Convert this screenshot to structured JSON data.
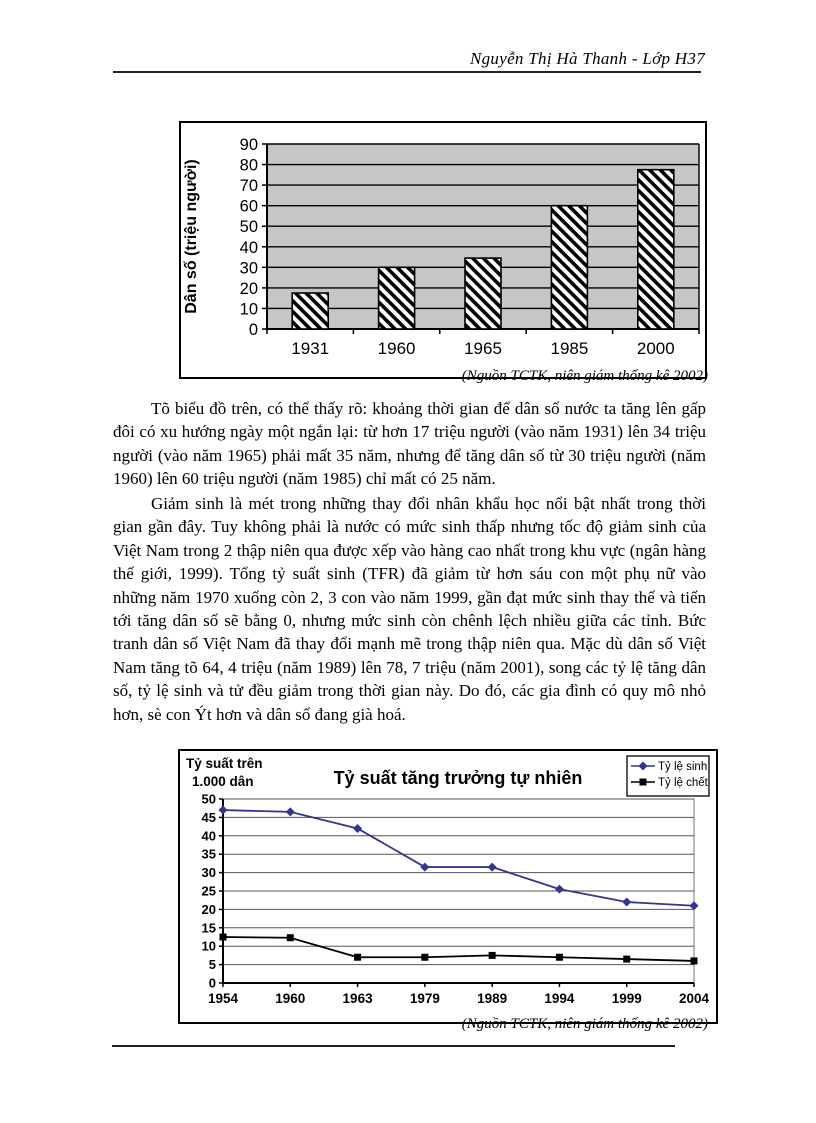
{
  "header": {
    "title": "Nguyễn Thị Hà Thanh - Lớp H37"
  },
  "captions": {
    "bar_source": "(Nguồn TCTK, niên giám thống kê 2002)",
    "line_source": "(Nguồn TCTK, niên giám thống kê 2002)"
  },
  "paragraphs": [
    "Tõ biểu đồ trên, có thể thấy rõ: khoảng thời gian để dân số nước ta tăng lên gấp đôi có xu hướng ngày một ngắn lại: từ hơn 17 triệu người (vào năm 1931) lên 34 triệu người (vào năm 1965) phải mất 35 năm, nhưng để tăng dân số từ 30 triệu người (năm 1960) lên 60 triệu người (năm 1985) chỉ mất có 25 năm.",
    "Giảm sinh là mét trong những thay đổi nhân khẩu học nổi bật nhất trong thời gian gần đây. Tuy không phải là nước có mức sinh thấp nhưng tốc độ giảm sinh của Việt Nam trong 2 thập niên qua được xếp vào hàng cao nhất trong khu vực (ngân hàng thế giới, 1999). Tổng tỷ suất sinh (TFR) đã giảm từ hơn sáu con một phụ nữ vào những năm 1970 xuống còn 2, 3 con vào năm 1999, gần đạt mức sinh thay thế và tiến tới tăng dân số sẽ bằng 0, nhưng mức sinh còn chênh lệch nhiều giữa các tỉnh. Bức tranh dân số Việt Nam đã thay đổi mạnh mẽ trong thập niên qua. Mặc dù dân số Việt Nam tăng tõ 64, 4 triệu (năm 1989) lên 78, 7 triệu (năm 2001), song các tỷ lệ tăng dân số, tỷ lệ sinh và tử đều giảm trong thời gian này. Do đó, các gia đình có quy mô nhỏ hơn, sè con Ýt hơn và dân số đang già hoá."
  ],
  "chart_data": [
    {
      "type": "bar",
      "title": "",
      "xlabel": "",
      "ylabel": "Dân số (triệu người)",
      "categories": [
        "1931",
        "1960",
        "1965",
        "1985",
        "2000"
      ],
      "values": [
        17.5,
        30,
        34.5,
        60,
        77.5
      ],
      "ylim": [
        0,
        90
      ],
      "ytick_step": 10,
      "grid": true,
      "legend_position": "none",
      "plot_bg": "#c6c6c6",
      "bar_style": "black-diagonal-hatch-on-white"
    },
    {
      "type": "line",
      "title": "Tỷ suất tăng trưởng tự nhiên",
      "xlabel": "",
      "ylabel": "Tỷ suất trên 1.000 dân",
      "ylabel_lines": [
        "Tỷ suất trên",
        "1.000 dân"
      ],
      "categories": [
        "1954",
        "1960",
        "1963",
        "1979",
        "1989",
        "1994",
        "1999",
        "2004"
      ],
      "series": [
        {
          "name": "Tỷ lệ sinh",
          "color": "#333399",
          "marker": "diamond",
          "values": [
            47,
            46.5,
            42,
            31.5,
            31.5,
            25.5,
            22,
            21
          ]
        },
        {
          "name": "Tỷ lệ chết",
          "color": "#000000",
          "marker": "square",
          "values": [
            12.5,
            12.3,
            7,
            7,
            7.5,
            7,
            6.5,
            6
          ]
        }
      ],
      "ylim": [
        0,
        50
      ],
      "ytick_step": 5,
      "grid": true,
      "legend_position": "top-right"
    }
  ]
}
